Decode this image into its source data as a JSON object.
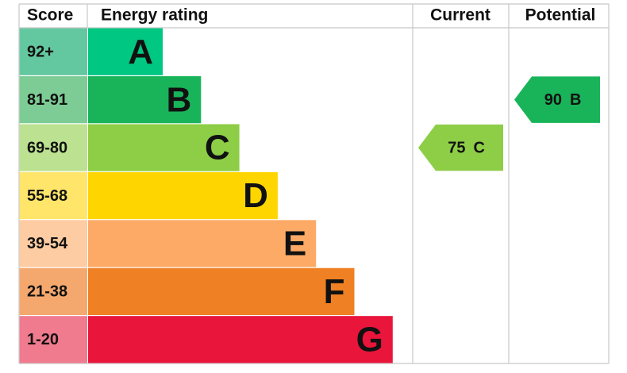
{
  "header": {
    "score": "Score",
    "rating": "Energy rating",
    "current": "Current",
    "potential": "Potential"
  },
  "bands": [
    {
      "score": "92+",
      "letter": "A",
      "color": "#00c781",
      "score_color": "#63c8a0"
    },
    {
      "score": "81-91",
      "letter": "B",
      "color": "#19b459",
      "score_color": "#7dcc95"
    },
    {
      "score": "69-80",
      "letter": "C",
      "color": "#8dce46",
      "score_color": "#bce291"
    },
    {
      "score": "55-68",
      "letter": "D",
      "color": "#ffd500",
      "score_color": "#ffe56a"
    },
    {
      "score": "39-54",
      "letter": "E",
      "color": "#fcaa65",
      "score_color": "#fdcca2"
    },
    {
      "score": "21-38",
      "letter": "F",
      "color": "#ef8023",
      "score_color": "#f5a86d"
    },
    {
      "score": "1-20",
      "letter": "G",
      "color": "#e9153b",
      "score_color": "#f07a8e"
    }
  ],
  "current": {
    "score": 75,
    "letter": "C"
  },
  "potential": {
    "score": 90,
    "letter": "B"
  }
}
